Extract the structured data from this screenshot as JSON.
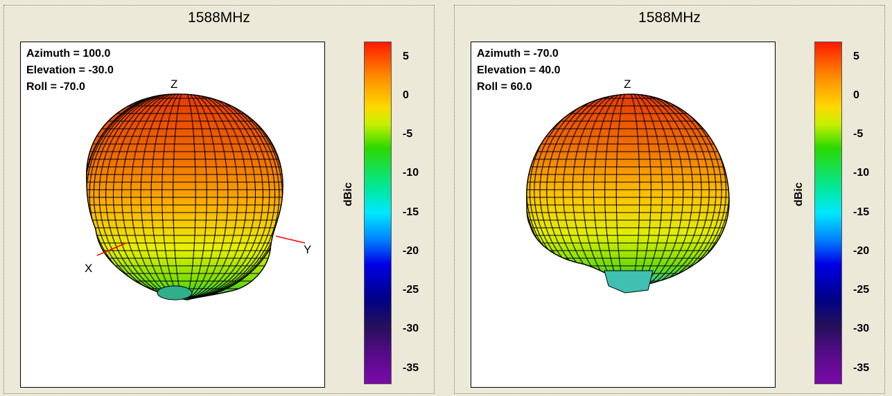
{
  "chart_data": [
    {
      "type": "3d-radiation-pattern",
      "title": "1588MHz",
      "view": {
        "azimuth": 100.0,
        "elevation": -30.0,
        "roll": -70.0
      },
      "view_labels": [
        "Azimuth = 100.0",
        "Elevation = -30.0",
        "Roll = -70.0"
      ],
      "axes_labels": [
        "Z",
        "X",
        "Y"
      ],
      "colorbar": {
        "label": "dBic",
        "ticks": [
          5,
          0,
          -5,
          -10,
          -15,
          -20,
          -25,
          -30,
          -35
        ],
        "range": [
          -37,
          7
        ],
        "colormap": "jet"
      }
    },
    {
      "type": "3d-radiation-pattern",
      "title": "1588MHz",
      "view": {
        "azimuth": -70.0,
        "elevation": 40.0,
        "roll": 60.0
      },
      "view_labels": [
        "Azimuth = -70.0",
        "Elevation = 40.0",
        "Roll = 60.0"
      ],
      "axes_labels": [
        "Z"
      ],
      "colorbar": {
        "label": "dBic",
        "ticks": [
          5,
          0,
          -5,
          -10,
          -15,
          -20,
          -25,
          -30,
          -35
        ],
        "range": [
          -37,
          7
        ],
        "colormap": "jet"
      }
    }
  ],
  "colors": {
    "background": "#ECE9D8",
    "axis_line": "#ff0000",
    "mesh_line": "#000000"
  }
}
